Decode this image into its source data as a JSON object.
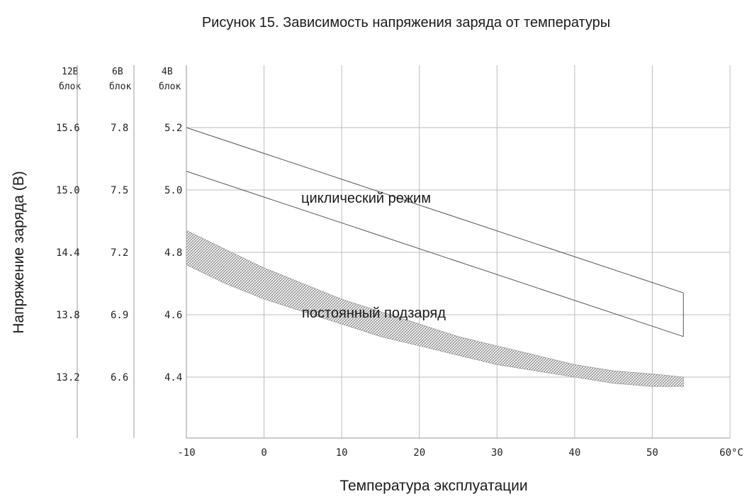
{
  "chart_data": {
    "type": "line",
    "title": "Рисунок 15. Зависимость напряжения заряда от температуры",
    "xlabel": "Температура эксплуатации",
    "ylabel": "Напряжение заряда (В)",
    "xlim": [
      -10,
      60
    ],
    "ylim": [
      4.2,
      5.3
    ],
    "x_ticks": [
      -10,
      0,
      10,
      20,
      30,
      40,
      50,
      60
    ],
    "x_tick_labels": [
      "-10",
      "0",
      "10",
      "20",
      "30",
      "40",
      "50",
      "60°C"
    ],
    "grid": true,
    "y_scales": [
      {
        "unit_label": "12В",
        "block_label": "блок",
        "ticks": [
          15.6,
          15.0,
          14.4,
          13.8,
          13.2
        ],
        "tick_labels": [
          "15.6",
          "15.0",
          "14.4",
          "13.8",
          "13.2"
        ]
      },
      {
        "unit_label": "6В",
        "block_label": "блок",
        "ticks": [
          7.8,
          7.5,
          7.2,
          6.9,
          6.6
        ],
        "tick_labels": [
          "7.8",
          "7.5",
          "7.2",
          "6.9",
          "6.6"
        ]
      },
      {
        "unit_label": "4В",
        "block_label": "блок",
        "ticks": [
          5.2,
          5.0,
          4.8,
          4.6,
          4.4
        ],
        "tick_labels": [
          "5.2",
          "5.0",
          "4.8",
          "4.6",
          "4.4"
        ]
      }
    ],
    "cyclic": {
      "label": "циклический режим",
      "x": [
        -10,
        54
      ],
      "upper": [
        5.2,
        4.67
      ],
      "lower": [
        5.06,
        4.53
      ]
    },
    "float": {
      "label": "постоянный подзаряд",
      "x": [
        -10,
        -5,
        0,
        5,
        10,
        15,
        20,
        25,
        30,
        35,
        40,
        45,
        50,
        54
      ],
      "upper": [
        4.87,
        4.81,
        4.75,
        4.7,
        4.65,
        4.61,
        4.57,
        4.53,
        4.5,
        4.47,
        4.44,
        4.42,
        4.41,
        4.4
      ],
      "lower": [
        4.76,
        4.7,
        4.65,
        4.61,
        4.57,
        4.53,
        4.5,
        4.47,
        4.44,
        4.42,
        4.4,
        4.38,
        4.37,
        4.37
      ]
    },
    "colors": {
      "grid": "#bdbdbd",
      "line": "#555555",
      "hatch": "#7a7a7a"
    }
  }
}
